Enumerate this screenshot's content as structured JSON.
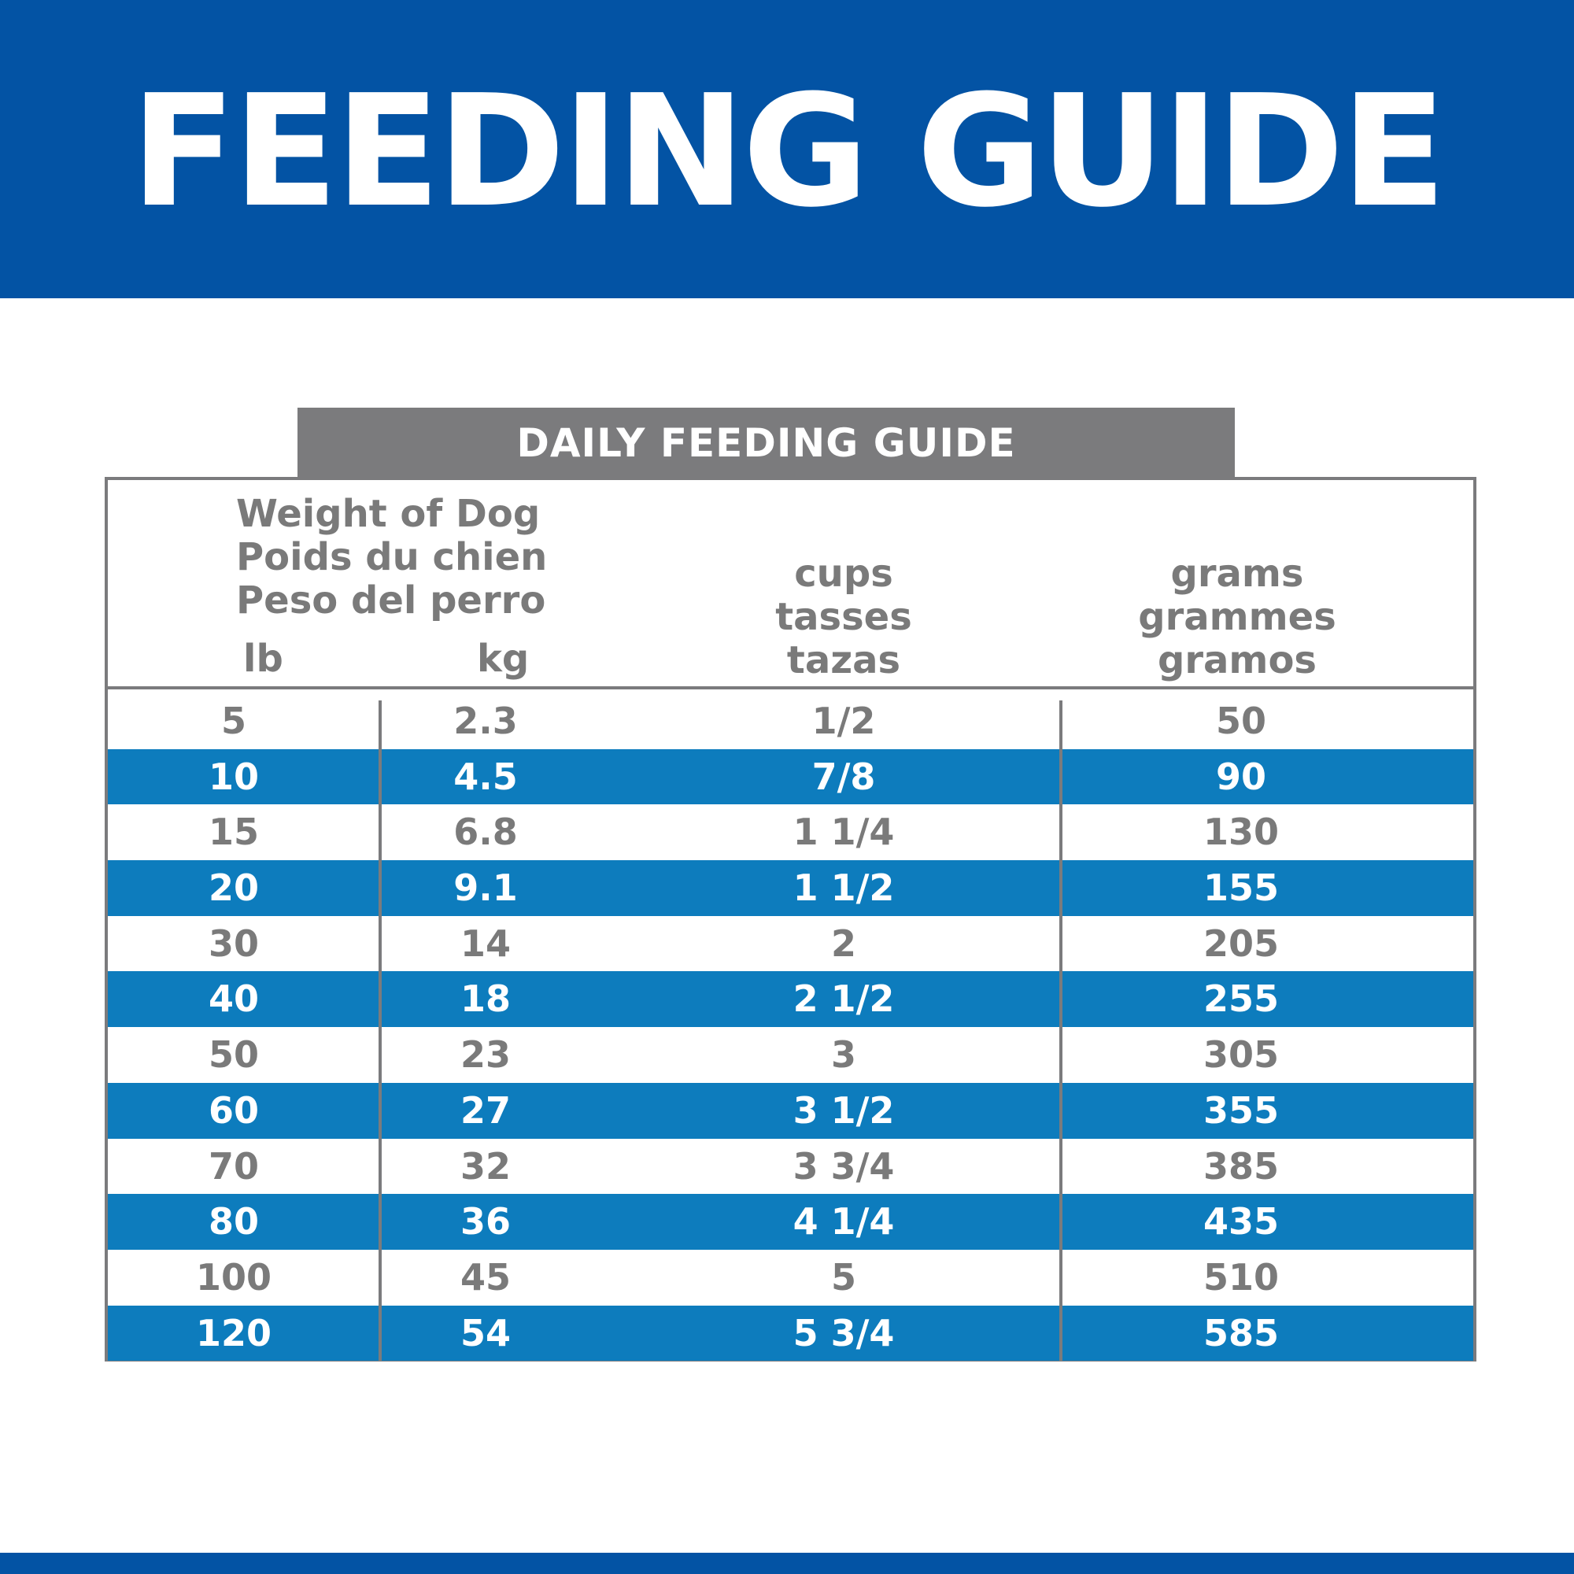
{
  "banner": {
    "title": "FEEDING GUIDE"
  },
  "table": {
    "title": "DAILY FEEDING GUIDE",
    "headers": {
      "weight": [
        "Weight of Dog",
        "Poids du chien",
        "Peso del perro"
      ],
      "lb": "lb",
      "kg": "kg",
      "cups": [
        "cups",
        "tasses",
        "tazas"
      ],
      "grams": [
        "grams",
        "grammes",
        "gramos"
      ]
    },
    "rows": [
      {
        "lb": "5",
        "kg": "2.3",
        "cups": "1/2",
        "grams": "50"
      },
      {
        "lb": "10",
        "kg": "4.5",
        "cups": "7/8",
        "grams": "90"
      },
      {
        "lb": "15",
        "kg": "6.8",
        "cups": "1 1/4",
        "grams": "130"
      },
      {
        "lb": "20",
        "kg": "9.1",
        "cups": "1 1/2",
        "grams": "155"
      },
      {
        "lb": "30",
        "kg": "14",
        "cups": "2",
        "grams": "205"
      },
      {
        "lb": "40",
        "kg": "18",
        "cups": "2 1/2",
        "grams": "255"
      },
      {
        "lb": "50",
        "kg": "23",
        "cups": "3",
        "grams": "305"
      },
      {
        "lb": "60",
        "kg": "27",
        "cups": "3 1/2",
        "grams": "355"
      },
      {
        "lb": "70",
        "kg": "32",
        "cups": "3 3/4",
        "grams": "385"
      },
      {
        "lb": "80",
        "kg": "36",
        "cups": "4 1/4",
        "grams": "435"
      },
      {
        "lb": "100",
        "kg": "45",
        "cups": "5",
        "grams": "510"
      },
      {
        "lb": "120",
        "kg": "54",
        "cups": "5 3/4",
        "grams": "585"
      }
    ]
  },
  "colors": {
    "brand_blue": "#0353a4",
    "row_blue": "#0d7cbd",
    "header_gray": "#7b7b7d",
    "text_gray": "#7a7a7a"
  }
}
